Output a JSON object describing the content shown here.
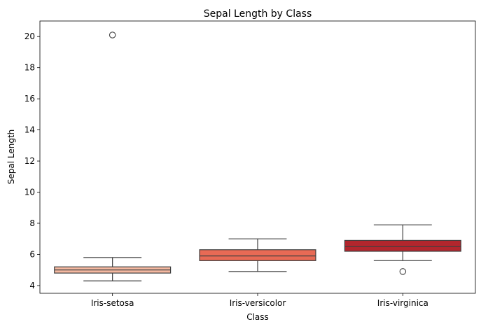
{
  "chart_data": {
    "type": "box",
    "title": "Sepal Length by Class",
    "xlabel": "Class",
    "ylabel": "Sepal Length",
    "ylim": [
      3.5,
      21.0
    ],
    "yticks": [
      4,
      6,
      8,
      10,
      12,
      14,
      16,
      18,
      20
    ],
    "grid": false,
    "categories": [
      "Iris-setosa",
      "Iris-versicolor",
      "Iris-virginica"
    ],
    "boxes": [
      {
        "category": "Iris-setosa",
        "color": "#f4b8a0",
        "whisker_low": 4.3,
        "q1": 4.8,
        "median": 5.0,
        "q3": 5.2,
        "whisker_high": 5.8,
        "outliers": [
          20.1
        ]
      },
      {
        "category": "Iris-versicolor",
        "color": "#e86a55",
        "whisker_low": 4.9,
        "q1": 5.6,
        "median": 5.9,
        "q3": 6.3,
        "whisker_high": 7.0,
        "outliers": []
      },
      {
        "category": "Iris-virginica",
        "color": "#b2262d",
        "whisker_low": 5.6,
        "q1": 6.2,
        "median": 6.5,
        "q3": 6.9,
        "whisker_high": 7.9,
        "outliers": [
          4.9
        ]
      }
    ]
  }
}
